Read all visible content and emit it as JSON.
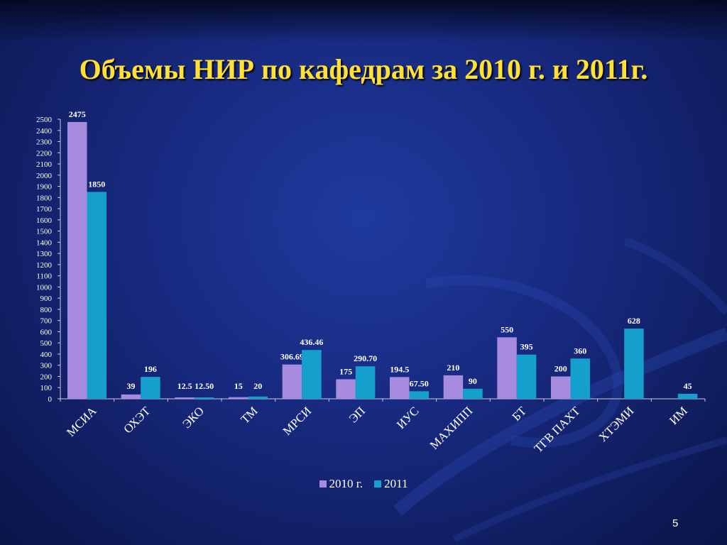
{
  "slide": {
    "title": "Объемы НИР по кафедрам за 2010 г. и 2011г.",
    "page_number": "5"
  },
  "colors": {
    "series_2010": "#a78bdf",
    "series_2011": "#159fcd",
    "title": "#ffe033",
    "axis_text": "#ffffff"
  },
  "chart_data": {
    "type": "bar",
    "title": "",
    "xlabel": "",
    "ylabel": "",
    "ylim": [
      0,
      2500
    ],
    "ytick_step": 100,
    "grid": false,
    "legend_position": "bottom",
    "categories": [
      "МСИА",
      "ОХЭТ",
      "ЭКО",
      "ТМ",
      "МРСИ",
      "ЭП",
      "ИУС",
      "МАХИПП",
      "БТ",
      "ТГВ ПАХТ",
      "ХТЭМИ",
      "ИМ"
    ],
    "series": [
      {
        "name": "2010 г.",
        "values": [
          2475,
          39,
          12.5,
          15,
          306.69,
          175,
          194.5,
          210,
          550,
          200,
          null,
          null
        ],
        "labels": [
          "2475",
          "39",
          "12.5",
          "15",
          "306.69",
          "175",
          "194.5",
          "210",
          "550",
          "200",
          null,
          null
        ]
      },
      {
        "name": "2011",
        "values": [
          1850,
          196,
          12.5,
          20,
          436.46,
          290.7,
          67.5,
          90,
          395,
          360,
          628,
          45
        ],
        "labels": [
          "1850",
          "196",
          "12.50",
          "20",
          "436.46",
          "290.70",
          "67.50",
          "90",
          "395",
          "360",
          "628",
          "45"
        ]
      }
    ]
  }
}
